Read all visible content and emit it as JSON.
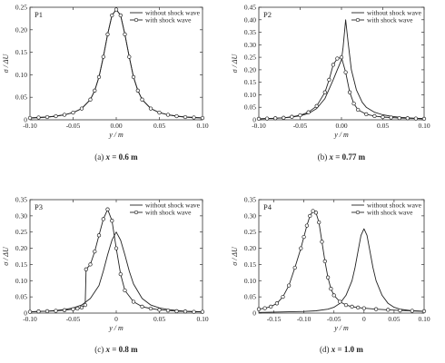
{
  "chart_data": [
    {
      "type": "line",
      "panel_label": "P1",
      "caption_letter": "(a)",
      "caption_var": "x",
      "caption_value": "= 0.6 m",
      "xlabel": "y / m",
      "ylabel": "σ / ΔU",
      "xlim": [
        -0.1,
        0.1
      ],
      "ylim": [
        0,
        0.25
      ],
      "xticks": [
        -0.1,
        -0.05,
        0.0,
        0.05,
        0.1
      ],
      "xtick_labels": [
        "-0.10",
        "-0.05",
        "0.00",
        "0.05",
        "0.10"
      ],
      "yticks": [
        0,
        0.05,
        0.1,
        0.15,
        0.2,
        0.25
      ],
      "ytick_labels": [
        "0",
        "0.05",
        "0.10",
        "0.15",
        "0.20",
        "0.25"
      ],
      "legend": [
        "without shock wave",
        "with shock wave"
      ],
      "series": [
        {
          "name": "without shock wave",
          "marker": "none",
          "x": [
            -0.1,
            -0.09,
            -0.08,
            -0.07,
            -0.06,
            -0.05,
            -0.04,
            -0.03,
            -0.025,
            -0.02,
            -0.015,
            -0.01,
            -0.005,
            0,
            0.005,
            0.01,
            0.015,
            0.02,
            0.025,
            0.03,
            0.04,
            0.05,
            0.06,
            0.07,
            0.08,
            0.09,
            0.1
          ],
          "y": [
            0.004,
            0.005,
            0.006,
            0.008,
            0.011,
            0.016,
            0.025,
            0.045,
            0.065,
            0.095,
            0.14,
            0.19,
            0.232,
            0.245,
            0.232,
            0.19,
            0.14,
            0.095,
            0.065,
            0.045,
            0.025,
            0.016,
            0.011,
            0.008,
            0.006,
            0.005,
            0.004
          ]
        },
        {
          "name": "with shock wave",
          "marker": "circle",
          "x": [
            -0.1,
            -0.09,
            -0.08,
            -0.07,
            -0.06,
            -0.05,
            -0.04,
            -0.03,
            -0.025,
            -0.02,
            -0.015,
            -0.01,
            -0.005,
            0,
            0.005,
            0.01,
            0.015,
            0.02,
            0.025,
            0.03,
            0.04,
            0.05,
            0.06,
            0.07,
            0.08,
            0.09,
            0.1
          ],
          "y": [
            0.004,
            0.005,
            0.006,
            0.008,
            0.011,
            0.016,
            0.025,
            0.045,
            0.065,
            0.095,
            0.14,
            0.19,
            0.232,
            0.245,
            0.232,
            0.19,
            0.14,
            0.095,
            0.065,
            0.045,
            0.025,
            0.016,
            0.011,
            0.008,
            0.006,
            0.005,
            0.004
          ]
        }
      ]
    },
    {
      "type": "line",
      "panel_label": "P2",
      "caption_letter": "(b)",
      "caption_var": "x",
      "caption_value": "= 0.77 m",
      "xlabel": "y / m",
      "ylabel": "σ / ΔU",
      "xlim": [
        -0.1,
        0.1
      ],
      "ylim": [
        0,
        0.45
      ],
      "xticks": [
        -0.1,
        -0.05,
        0.0,
        0.05,
        0.1
      ],
      "xtick_labels": [
        "-0.10",
        "-0.05",
        "0.00",
        "0.05",
        "0.10"
      ],
      "yticks": [
        0,
        0.05,
        0.1,
        0.15,
        0.2,
        0.25,
        0.3,
        0.35,
        0.4,
        0.45
      ],
      "ytick_labels": [
        "0",
        "0.05",
        "0.10",
        "0.15",
        "0.20",
        "0.25",
        "0.30",
        "0.35",
        "0.40",
        "0.45"
      ],
      "legend": [
        "without shock wave",
        "with shock wave"
      ],
      "series": [
        {
          "name": "without shock wave",
          "marker": "none",
          "x": [
            -0.1,
            -0.09,
            -0.08,
            -0.07,
            -0.06,
            -0.05,
            -0.04,
            -0.03,
            -0.02,
            -0.01,
            -0.005,
            0,
            0.002,
            0.005,
            0.008,
            0.012,
            0.018,
            0.025,
            0.03,
            0.04,
            0.05,
            0.06,
            0.07,
            0.08,
            0.09,
            0.1
          ],
          "y": [
            0.004,
            0.005,
            0.006,
            0.008,
            0.011,
            0.016,
            0.025,
            0.045,
            0.085,
            0.16,
            0.2,
            0.24,
            0.29,
            0.4,
            0.31,
            0.2,
            0.12,
            0.07,
            0.05,
            0.03,
            0.02,
            0.014,
            0.01,
            0.008,
            0.006,
            0.005
          ]
        },
        {
          "name": "with shock wave",
          "marker": "circle",
          "x": [
            -0.1,
            -0.09,
            -0.08,
            -0.07,
            -0.06,
            -0.05,
            -0.04,
            -0.03,
            -0.02,
            -0.015,
            -0.01,
            -0.005,
            0,
            0.005,
            0.01,
            0.015,
            0.02,
            0.03,
            0.04,
            0.05,
            0.06,
            0.07,
            0.08,
            0.09,
            0.1
          ],
          "y": [
            0.004,
            0.005,
            0.006,
            0.008,
            0.012,
            0.018,
            0.03,
            0.055,
            0.11,
            0.16,
            0.22,
            0.245,
            0.25,
            0.19,
            0.11,
            0.065,
            0.04,
            0.022,
            0.015,
            0.011,
            0.009,
            0.007,
            0.006,
            0.005,
            0.004
          ]
        }
      ]
    },
    {
      "type": "line",
      "panel_label": "P3",
      "caption_letter": "(c)",
      "caption_var": "x",
      "caption_value": "= 0.8 m",
      "xlabel": "y / m",
      "ylabel": "σ / ΔU",
      "xlim": [
        -0.1,
        0.1
      ],
      "ylim": [
        0,
        0.35
      ],
      "xticks": [
        -0.1,
        -0.05,
        0.0,
        0.05,
        0.1
      ],
      "xtick_labels": [
        "-0.10",
        "-0.05",
        "0",
        "0.05",
        "0.10"
      ],
      "yticks": [
        0,
        0.05,
        0.1,
        0.15,
        0.2,
        0.25,
        0.3,
        0.35
      ],
      "ytick_labels": [
        "0",
        "0.05",
        "0.10",
        "0.15",
        "0.20",
        "0.25",
        "0.30",
        "0.35"
      ],
      "legend": [
        "without shock wave",
        "with shock wave"
      ],
      "series": [
        {
          "name": "without shock wave",
          "marker": "none",
          "x": [
            -0.1,
            -0.09,
            -0.08,
            -0.07,
            -0.06,
            -0.05,
            -0.04,
            -0.03,
            -0.02,
            -0.015,
            -0.01,
            -0.005,
            0,
            0.005,
            0.01,
            0.015,
            0.02,
            0.03,
            0.04,
            0.05,
            0.06,
            0.07,
            0.08,
            0.09,
            0.1
          ],
          "y": [
            0.004,
            0.005,
            0.006,
            0.008,
            0.011,
            0.016,
            0.025,
            0.045,
            0.085,
            0.13,
            0.18,
            0.225,
            0.25,
            0.225,
            0.18,
            0.13,
            0.09,
            0.045,
            0.025,
            0.016,
            0.011,
            0.008,
            0.006,
            0.005,
            0.004
          ]
        },
        {
          "name": "with shock wave",
          "marker": "circle",
          "x": [
            -0.1,
            -0.09,
            -0.08,
            -0.07,
            -0.06,
            -0.05,
            -0.045,
            -0.04,
            -0.036,
            -0.035,
            -0.03,
            -0.025,
            -0.02,
            -0.015,
            -0.01,
            -0.005,
            0,
            0.005,
            0.01,
            0.02,
            0.03,
            0.04,
            0.05,
            0.06,
            0.07,
            0.08,
            0.09,
            0.1
          ],
          "y": [
            0.004,
            0.005,
            0.006,
            0.007,
            0.009,
            0.012,
            0.014,
            0.017,
            0.025,
            0.135,
            0.15,
            0.19,
            0.24,
            0.29,
            0.32,
            0.285,
            0.2,
            0.12,
            0.07,
            0.035,
            0.02,
            0.014,
            0.01,
            0.008,
            0.006,
            0.005,
            0.004,
            0.004
          ]
        }
      ]
    },
    {
      "type": "line",
      "panel_label": "P4",
      "caption_letter": "(d)",
      "caption_var": "x",
      "caption_value": "= 1.0 m",
      "xlabel": "y / m",
      "ylabel": "σ / ΔU",
      "xlim": [
        -0.175,
        0.1
      ],
      "ylim": [
        0,
        0.35
      ],
      "xticks": [
        -0.15,
        -0.1,
        -0.05,
        0,
        0.05,
        0.1
      ],
      "xtick_labels": [
        "-0.15",
        "-0.10",
        "-0.05",
        "0",
        "0.05",
        "0.10"
      ],
      "yticks": [
        0,
        0.05,
        0.1,
        0.15,
        0.2,
        0.25,
        0.3,
        0.35
      ],
      "ytick_labels": [
        "0",
        "0.05",
        "0.10",
        "0.15",
        "0.20",
        "0.25",
        "0.30",
        "0.35"
      ],
      "legend": [
        "without shock wave",
        "with shock wave"
      ],
      "series": [
        {
          "name": "without shock wave",
          "marker": "none",
          "x": [
            -0.175,
            -0.15,
            -0.125,
            -0.1,
            -0.08,
            -0.06,
            -0.05,
            -0.04,
            -0.03,
            -0.02,
            -0.015,
            -0.01,
            -0.005,
            0,
            0.005,
            0.01,
            0.015,
            0.02,
            0.03,
            0.04,
            0.05,
            0.06,
            0.08,
            0.1
          ],
          "y": [
            0.002,
            0.003,
            0.004,
            0.005,
            0.007,
            0.012,
            0.018,
            0.03,
            0.055,
            0.1,
            0.14,
            0.19,
            0.24,
            0.26,
            0.24,
            0.19,
            0.14,
            0.1,
            0.055,
            0.03,
            0.018,
            0.012,
            0.007,
            0.005
          ]
        },
        {
          "name": "with shock wave",
          "marker": "circle",
          "x": [
            -0.175,
            -0.165,
            -0.155,
            -0.145,
            -0.135,
            -0.125,
            -0.115,
            -0.105,
            -0.1,
            -0.095,
            -0.09,
            -0.085,
            -0.08,
            -0.075,
            -0.07,
            -0.065,
            -0.06,
            -0.055,
            -0.05,
            -0.04,
            -0.03,
            -0.02,
            -0.01,
            0,
            0.02,
            0.04,
            0.06,
            0.08,
            0.1
          ],
          "y": [
            0.012,
            0.015,
            0.02,
            0.03,
            0.05,
            0.085,
            0.14,
            0.2,
            0.235,
            0.27,
            0.3,
            0.315,
            0.31,
            0.28,
            0.22,
            0.16,
            0.11,
            0.075,
            0.055,
            0.035,
            0.025,
            0.02,
            0.017,
            0.015,
            0.012,
            0.01,
            0.008,
            0.007,
            0.006
          ]
        }
      ]
    }
  ]
}
